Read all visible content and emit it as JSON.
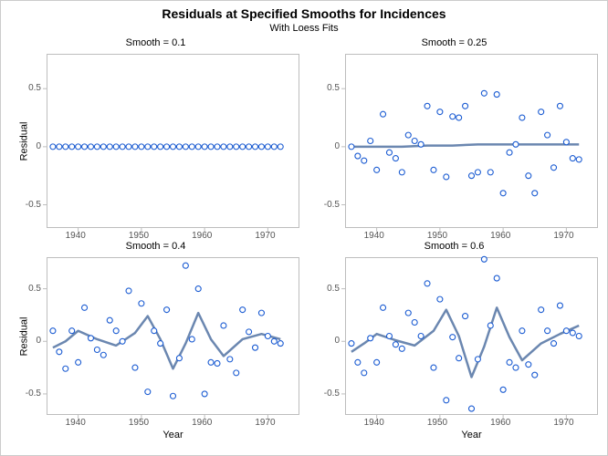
{
  "title": "Residuals at Specified Smooths for Incidences",
  "subtitle": "With Loess Fits",
  "title_fontsize": 14,
  "subtitle_fontsize": 11,
  "panel_title_fontsize": 11,
  "axis_label_fontsize": 11,
  "tick_fontsize": 10,
  "xlabel": "Year",
  "ylabel": "Residual",
  "xlim": [
    1935,
    1975
  ],
  "ylim": [
    -0.7,
    0.8
  ],
  "xtick_labels": [
    "1940",
    "1950",
    "1960",
    "1970"
  ],
  "xtick_values": [
    1940,
    1950,
    1960,
    1970
  ],
  "ytick_labels": [
    "-0.5",
    "0",
    "0.5"
  ],
  "ytick_values": [
    -0.5,
    0,
    0.5
  ],
  "layout": "2x2",
  "colors": {
    "background": "#ffffff",
    "panel_border": "#bdbdbd",
    "marker_stroke": "#1a5bd2",
    "marker_fill": "#ffffff",
    "line": "#6b87b0",
    "text": "#333333"
  },
  "marker": {
    "shape": "circle",
    "radius": 3,
    "stroke_width": 1.1
  },
  "line_width": 2.5,
  "row_show_xlabel": [
    false,
    true
  ],
  "col_show_ylabel": [
    true,
    false
  ],
  "panel_geometry": {
    "title_h": 18,
    "left_pad": 44,
    "xaxis_h": 32
  },
  "panels": [
    {
      "title": "Smooth = 0.1",
      "type": "scatter+line",
      "scatter": {
        "x": [
          1936,
          1937,
          1938,
          1939,
          1940,
          1941,
          1942,
          1943,
          1944,
          1945,
          1946,
          1947,
          1948,
          1949,
          1950,
          1951,
          1952,
          1953,
          1954,
          1955,
          1956,
          1957,
          1958,
          1959,
          1960,
          1961,
          1962,
          1963,
          1964,
          1965,
          1966,
          1967,
          1968,
          1969,
          1970,
          1971,
          1972
        ],
        "y": [
          0,
          0,
          0,
          0,
          0,
          0,
          0,
          0,
          0,
          0,
          0,
          0,
          0,
          0,
          0,
          0,
          0,
          0,
          0,
          0,
          0,
          0,
          0,
          0,
          0,
          0,
          0,
          0,
          0,
          0,
          0,
          0,
          0,
          0,
          0,
          0,
          0
        ]
      },
      "loess": {
        "x": [
          1936,
          1972
        ],
        "y": [
          0,
          0
        ]
      }
    },
    {
      "title": "Smooth = 0.25",
      "type": "scatter+line",
      "scatter": {
        "x": [
          1936,
          1937,
          1938,
          1939,
          1940,
          1941,
          1942,
          1943,
          1944,
          1945,
          1946,
          1947,
          1948,
          1949,
          1950,
          1951,
          1952,
          1953,
          1954,
          1955,
          1956,
          1957,
          1958,
          1959,
          1960,
          1961,
          1962,
          1963,
          1964,
          1965,
          1966,
          1967,
          1968,
          1969,
          1970,
          1971,
          1972
        ],
        "y": [
          0.0,
          -0.08,
          -0.12,
          0.05,
          -0.2,
          0.28,
          -0.05,
          -0.1,
          -0.22,
          0.1,
          0.05,
          0.02,
          0.35,
          -0.2,
          0.3,
          -0.26,
          0.26,
          0.25,
          0.35,
          -0.25,
          -0.22,
          0.46,
          -0.22,
          0.45,
          -0.4,
          -0.05,
          0.02,
          0.25,
          -0.25,
          -0.4,
          0.3,
          0.1,
          -0.18,
          0.35,
          0.04,
          -0.1,
          -0.11
        ]
      },
      "loess": {
        "x": [
          1936,
          1940,
          1944,
          1948,
          1952,
          1956,
          1960,
          1964,
          1968,
          1972
        ],
        "y": [
          0.0,
          0.0,
          0.0,
          0.01,
          0.01,
          0.02,
          0.02,
          0.02,
          0.02,
          0.02
        ]
      }
    },
    {
      "title": "Smooth = 0.4",
      "type": "scatter+line",
      "scatter": {
        "x": [
          1936,
          1937,
          1938,
          1939,
          1940,
          1941,
          1942,
          1943,
          1944,
          1945,
          1946,
          1947,
          1948,
          1949,
          1950,
          1951,
          1952,
          1953,
          1954,
          1955,
          1956,
          1957,
          1958,
          1959,
          1960,
          1961,
          1962,
          1963,
          1964,
          1965,
          1966,
          1967,
          1968,
          1969,
          1970,
          1971,
          1972
        ],
        "y": [
          0.1,
          -0.1,
          -0.26,
          0.1,
          -0.2,
          0.32,
          0.03,
          -0.08,
          -0.13,
          0.2,
          0.1,
          0.0,
          0.48,
          -0.25,
          0.36,
          -0.48,
          0.1,
          -0.02,
          0.3,
          -0.52,
          -0.16,
          0.72,
          0.02,
          0.5,
          -0.5,
          -0.2,
          -0.21,
          0.15,
          -0.17,
          -0.3,
          0.3,
          0.09,
          -0.06,
          0.27,
          0.05,
          0.0,
          -0.02
        ]
      },
      "loess": {
        "x": [
          1936,
          1938,
          1940,
          1943,
          1946,
          1949,
          1951,
          1953,
          1955,
          1957,
          1959,
          1961,
          1963,
          1966,
          1969,
          1972
        ],
        "y": [
          -0.06,
          0.0,
          0.1,
          0.02,
          -0.04,
          0.08,
          0.24,
          0.02,
          -0.26,
          -0.02,
          0.27,
          0.02,
          -0.14,
          0.02,
          0.07,
          0.02
        ]
      }
    },
    {
      "title": "Smooth = 0.6",
      "type": "scatter+line",
      "scatter": {
        "x": [
          1936,
          1937,
          1938,
          1939,
          1940,
          1941,
          1942,
          1943,
          1944,
          1945,
          1946,
          1947,
          1948,
          1949,
          1950,
          1951,
          1952,
          1953,
          1954,
          1955,
          1956,
          1957,
          1958,
          1959,
          1960,
          1961,
          1962,
          1963,
          1964,
          1965,
          1966,
          1967,
          1968,
          1969,
          1970,
          1971,
          1972
        ],
        "y": [
          -0.02,
          -0.2,
          -0.3,
          0.03,
          -0.2,
          0.32,
          0.05,
          -0.03,
          -0.07,
          0.27,
          0.18,
          0.05,
          0.55,
          -0.25,
          0.4,
          -0.56,
          0.04,
          -0.16,
          0.24,
          -0.64,
          -0.17,
          0.78,
          0.15,
          0.6,
          -0.46,
          -0.2,
          -0.25,
          0.1,
          -0.22,
          -0.32,
          0.3,
          0.1,
          -0.02,
          0.34,
          0.1,
          0.08,
          0.05
        ]
      },
      "loess": {
        "x": [
          1936,
          1938,
          1940,
          1943,
          1946,
          1949,
          1951,
          1953,
          1955,
          1957,
          1959,
          1961,
          1963,
          1966,
          1969,
          1972
        ],
        "y": [
          -0.1,
          -0.02,
          0.07,
          0.01,
          -0.04,
          0.1,
          0.3,
          0.05,
          -0.34,
          -0.05,
          0.32,
          0.04,
          -0.18,
          -0.02,
          0.07,
          0.15
        ]
      }
    }
  ]
}
